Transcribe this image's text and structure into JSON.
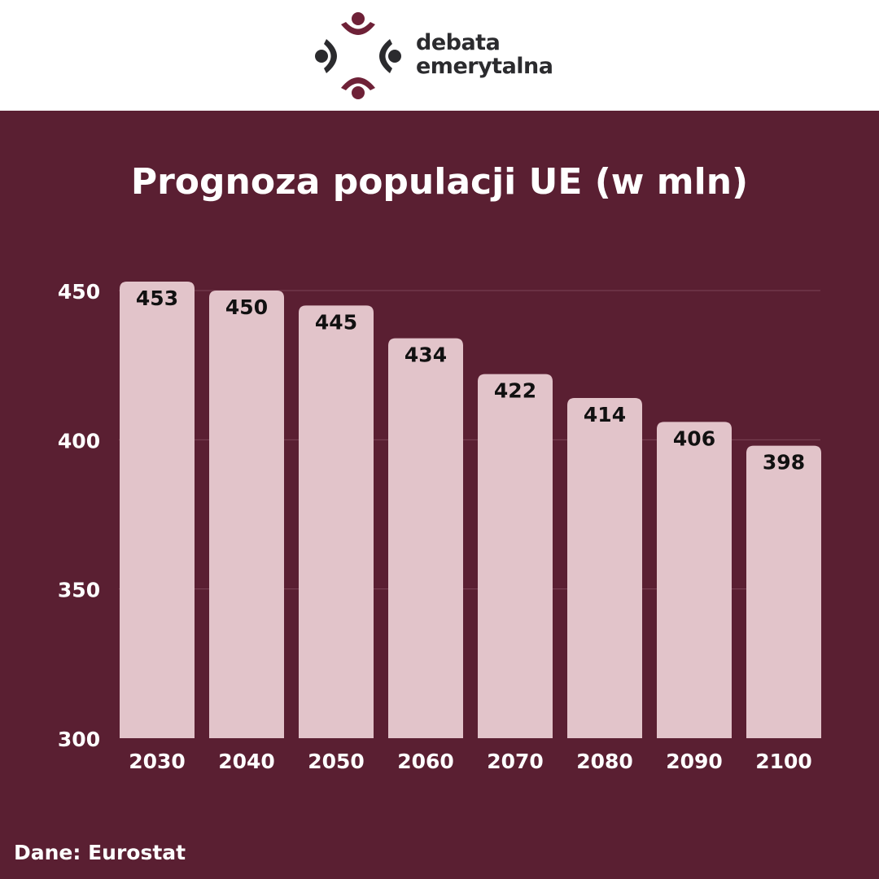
{
  "logo": {
    "line1": "debata",
    "line2": "emerytalna",
    "colors": {
      "dark": "#2b2b2e",
      "accent": "#6e2137"
    }
  },
  "source_text": "Dane: Eurostat",
  "colors": {
    "background": "#5a1f32",
    "header": "#ffffff",
    "bar": "#e2c4ca",
    "bar_label": "#111111",
    "axis_text": "#ffffff",
    "grid": "#7a4356"
  },
  "chart_data": {
    "type": "bar",
    "title": "Prognoza populacji UE (w mln)",
    "categories": [
      "2030",
      "2040",
      "2050",
      "2060",
      "2070",
      "2080",
      "2090",
      "2100"
    ],
    "values": [
      453,
      450,
      445,
      434,
      422,
      414,
      406,
      398
    ],
    "data_labels": [
      "453",
      "450",
      "445",
      "434",
      "422",
      "414",
      "406",
      "398"
    ],
    "ylim": [
      300,
      450
    ],
    "yticks": [
      300,
      350,
      400,
      450
    ],
    "ytick_labels": [
      "300",
      "350",
      "400",
      "450"
    ],
    "grid": true,
    "xlabel": "",
    "ylabel": ""
  }
}
